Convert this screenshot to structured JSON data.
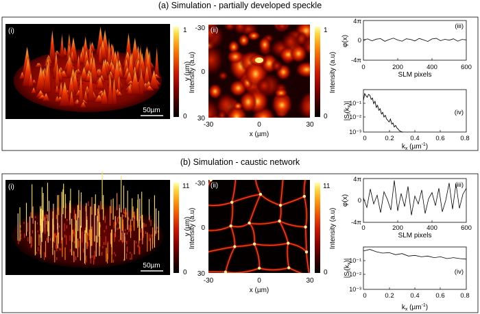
{
  "figure": {
    "section_a_title": "(a) Simulation - partially developed speckle",
    "section_b_title": "(b) Simulation - caustic network"
  },
  "colorscale": {
    "stops": [
      "#000000",
      "#3a0000",
      "#8a0000",
      "#d01a00",
      "#f25a00",
      "#ff9a10",
      "#ffd840",
      "#ffffb0"
    ]
  },
  "sections": [
    {
      "id": "a",
      "panel_i": {
        "label": "(i)",
        "scalebar": "50µm"
      },
      "colorbar_i": {
        "max": "1",
        "min": "0",
        "label": "Intensity (a.u)"
      },
      "panel_ii": {
        "label": "(ii)",
        "y_ticks": [
          "-30",
          "0",
          "30"
        ],
        "x_ticks": [
          "-30",
          "0",
          "30"
        ],
        "ylabel": "y (µm)",
        "xlabel": "x (µm)"
      },
      "colorbar_ii": {
        "max": "1",
        "min": "0",
        "label": "Intensity (a.u)"
      },
      "panel_iii": {
        "label": "(iii)",
        "y_ticks": [
          "4π",
          "0",
          "-4π"
        ],
        "x_ticks": [
          "0",
          "200",
          "400",
          "600"
        ],
        "ylabel": "φ(x)",
        "xlabel": "SLM pixels"
      },
      "panel_iv": {
        "label": "(iv)",
        "y_ticks": [
          "10⁻¹",
          "10⁻²",
          "10⁻³"
        ],
        "x_ticks": [
          "0",
          "0.2",
          "0.4",
          "0.6",
          "0.8"
        ],
        "ylabel_main": "|S",
        "ylabel_sub": "l",
        "ylabel_mid": "(k",
        "ylabel_sub2": "x",
        "ylabel_end": ")|",
        "xlabel_main": "k",
        "xlabel_sub": "x",
        "xlabel_unit": " (µm",
        "xlabel_sup": "-1",
        "xlabel_end": ")"
      }
    },
    {
      "id": "b",
      "panel_i": {
        "label": "(i)",
        "scalebar": "50µm"
      },
      "colorbar_i": {
        "max": "11",
        "min": "0",
        "label": "Intensity (a.u)"
      },
      "panel_ii": {
        "label": "(ii)",
        "y_ticks": [
          "-30",
          "0",
          "30"
        ],
        "x_ticks": [
          "-30",
          "0",
          "30"
        ],
        "ylabel": "y (µm)",
        "xlabel": "x (µm)"
      },
      "colorbar_ii": {
        "max": "11",
        "min": "0",
        "label": "Intensity (a.u)"
      },
      "panel_iii": {
        "label": "(iii)",
        "y_ticks": [
          "4π",
          "0",
          "-4π"
        ],
        "x_ticks": [
          "0",
          "200",
          "400",
          "600"
        ],
        "ylabel": "φ(x)",
        "xlabel": "SLM pixels"
      },
      "panel_iv": {
        "label": "(iv)",
        "y_ticks": [
          "10⁻¹",
          "10⁻²",
          "10⁻³"
        ],
        "x_ticks": [
          "0",
          "0.2",
          "0.4",
          "0.6",
          "0.8"
        ],
        "ylabel_main": "|S",
        "ylabel_sub": "l",
        "ylabel_mid": "(k",
        "ylabel_sub2": "x",
        "ylabel_end": ")|",
        "xlabel_main": "k",
        "xlabel_sub": "x",
        "xlabel_unit": " (µm",
        "xlabel_sup": "-1",
        "xlabel_end": ")"
      }
    }
  ],
  "chart_data": [
    {
      "type": "line",
      "panel": "a(iii)",
      "title": "",
      "xlabel": "SLM pixels",
      "ylabel": "φ(x)",
      "xlim": [
        0,
        600
      ],
      "ylim": [
        -12.566,
        12.566
      ],
      "x": [
        0,
        25,
        50,
        75,
        100,
        125,
        150,
        175,
        200,
        225,
        250,
        275,
        300,
        325,
        350,
        375,
        400,
        425,
        450,
        475,
        500,
        525,
        550,
        575,
        600
      ],
      "y": [
        0.4,
        0.9,
        -0.3,
        0.8,
        1.1,
        -0.6,
        0.5,
        1.4,
        0.2,
        -0.5,
        1.0,
        0.6,
        -0.4,
        1.2,
        0.3,
        -0.7,
        0.9,
        1.3,
        -0.2,
        0.7,
        0.1,
        1.0,
        -0.5,
        0.6,
        0.3
      ]
    },
    {
      "type": "line",
      "panel": "a(iv)",
      "title": "",
      "xlabel": "kx (µm-1)",
      "ylabel": "|Sl(kx)|",
      "yscale": "log",
      "xlim": [
        0,
        0.8
      ],
      "ylim": [
        0.001,
        0.35
      ],
      "x": [
        0.0,
        0.01,
        0.02,
        0.03,
        0.04,
        0.05,
        0.06,
        0.07,
        0.08,
        0.09,
        0.1,
        0.11,
        0.12,
        0.13,
        0.14,
        0.15,
        0.16,
        0.17,
        0.18,
        0.19,
        0.2,
        0.21,
        0.22,
        0.23,
        0.24,
        0.25,
        0.26,
        0.27,
        0.28,
        0.29,
        0.3,
        0.31
      ],
      "y": [
        0.08,
        0.2,
        0.15,
        0.12,
        0.18,
        0.16,
        0.09,
        0.11,
        0.05,
        0.07,
        0.03,
        0.04,
        0.02,
        0.025,
        0.012,
        0.015,
        0.008,
        0.01,
        0.006,
        0.005,
        0.004,
        0.006,
        0.003,
        0.0035,
        0.002,
        0.0025,
        0.0018,
        0.0015,
        0.0012,
        0.0011,
        0.001,
        0.001
      ]
    },
    {
      "type": "line",
      "panel": "b(iii)",
      "title": "",
      "xlabel": "SLM pixels",
      "ylabel": "φ(x)",
      "xlim": [
        0,
        600
      ],
      "ylim": [
        -12.566,
        12.566
      ],
      "x": [
        0,
        20,
        40,
        60,
        80,
        100,
        120,
        140,
        160,
        180,
        200,
        220,
        240,
        260,
        280,
        300,
        320,
        340,
        360,
        380,
        400,
        420,
        440,
        460,
        480,
        500,
        520,
        540,
        560,
        580,
        600
      ],
      "y": [
        1.5,
        -4.0,
        6.5,
        -2.0,
        3.0,
        -7.0,
        5.0,
        0.5,
        -5.5,
        11.5,
        -6.0,
        4.0,
        -3.5,
        8.0,
        -8.5,
        2.5,
        -2.0,
        6.0,
        -7.5,
        1.0,
        4.5,
        -3.0,
        7.0,
        -6.5,
        0.0,
        10.0,
        -5.0,
        9.5,
        -4.5,
        3.5,
        7.0
      ]
    },
    {
      "type": "line",
      "panel": "b(iv)",
      "title": "",
      "xlabel": "kx (µm-1)",
      "ylabel": "|Sl(kx)|",
      "yscale": "log",
      "xlim": [
        0,
        0.8
      ],
      "ylim": [
        0.001,
        0.35
      ],
      "x": [
        0.0,
        0.05,
        0.1,
        0.15,
        0.2,
        0.25,
        0.3,
        0.35,
        0.4,
        0.45,
        0.5,
        0.55,
        0.6,
        0.65,
        0.7,
        0.75,
        0.8
      ],
      "y": [
        0.2,
        0.25,
        0.18,
        0.15,
        0.16,
        0.12,
        0.14,
        0.1,
        0.11,
        0.09,
        0.1,
        0.08,
        0.09,
        0.07,
        0.08,
        0.07,
        0.065
      ]
    }
  ]
}
